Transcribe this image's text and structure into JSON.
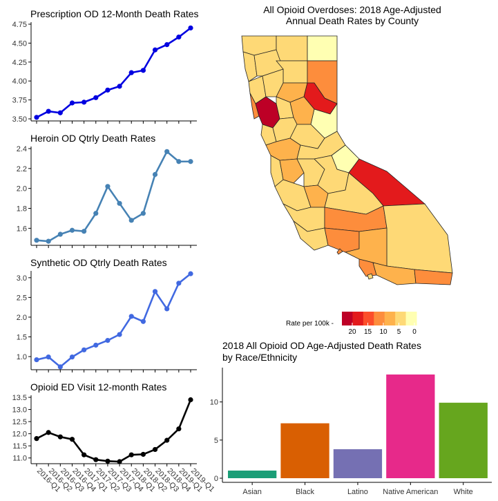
{
  "chart_data": [
    {
      "type": "line",
      "title": "Prescription OD 12-Month Death Rates",
      "x": [
        "2016-Q1",
        "2016-Q2",
        "2016-Q3",
        "2016-Q4",
        "2017-Q1",
        "2017-Q2",
        "2017-Q3",
        "2017-Q4",
        "2018-Q1",
        "2018-Q2",
        "2018-Q3",
        "2018-Q4",
        "2019-Q1",
        "2019-Q1"
      ],
      "values": [
        3.52,
        3.6,
        3.58,
        3.71,
        3.72,
        3.78,
        3.88,
        3.93,
        4.11,
        4.14,
        4.41,
        4.48,
        4.58,
        4.7
      ],
      "ylim": [
        3.5,
        4.75
      ],
      "yticks": [
        "3.50",
        "3.75",
        "4.00",
        "4.25",
        "4.50",
        "4.75"
      ],
      "color": "#0000e0"
    },
    {
      "type": "line",
      "title": "Heroin OD Qtrly Death Rates",
      "values": [
        1.48,
        1.47,
        1.54,
        1.58,
        1.57,
        1.75,
        2.02,
        1.85,
        1.68,
        1.75,
        2.14,
        2.37,
        2.27,
        2.27
      ],
      "ylim": [
        1.45,
        2.4
      ],
      "yticks": [
        "1.6",
        "1.8",
        "2.0",
        "2.2",
        "2.4"
      ],
      "color": "#4682b4"
    },
    {
      "type": "line",
      "title": "Synthetic OD Qtrly Death Rates",
      "values": [
        0.92,
        0.99,
        0.74,
        0.99,
        1.17,
        1.29,
        1.41,
        1.56,
        2.02,
        1.89,
        2.65,
        2.21,
        2.86,
        3.1
      ],
      "ylim": [
        0.72,
        3.12
      ],
      "yticks": [
        "1.0",
        "1.5",
        "2.0",
        "2.5",
        "3.0"
      ],
      "color": "#4169e1"
    },
    {
      "type": "line",
      "title": "Opioid ED Visit 12-month Rates",
      "values": [
        11.8,
        12.05,
        11.87,
        11.77,
        11.13,
        10.93,
        10.87,
        10.85,
        11.13,
        11.15,
        11.35,
        11.73,
        12.2,
        13.4
      ],
      "ylim": [
        10.85,
        13.5
      ],
      "yticks": [
        "11.0",
        "11.5",
        "12.0",
        "12.5",
        "13.0",
        "13.5"
      ],
      "xticks": [
        "2016-Q1",
        "2016-Q2",
        "2016-Q3",
        "2016-Q4",
        "2017-Q1",
        "2017-Q2",
        "2017-Q3",
        "2017-Q4",
        "2018-Q1",
        "2018-Q2",
        "2018-Q3",
        "2018-Q4",
        "2019-Q1",
        "2019-Q1"
      ],
      "color": "#000000"
    },
    {
      "type": "map",
      "title_line1": "All Opioid Overdoses: 2018 Age-Adjusted",
      "title_line2": "Annual Death Rates by County",
      "legend_title": "Rate per 100k -",
      "legend_ticks": [
        "20",
        "15",
        "10",
        "5",
        "0"
      ],
      "legend_colors": [
        "#bd0026",
        "#e31a1c",
        "#fc4e2a",
        "#fd8d3c",
        "#feb24c",
        "#fed976",
        "#ffffb2"
      ]
    },
    {
      "type": "bar",
      "title_line1": "2018 All Opioid OD Age-Adjusted Death Rates",
      "title_line2": "by Race/Ethnicity",
      "categories": [
        "Asian",
        "Black",
        "Latino",
        "Native American",
        "White"
      ],
      "values": [
        1.0,
        7.2,
        3.8,
        13.6,
        9.9
      ],
      "colors": [
        "#1b9e77",
        "#d95f02",
        "#7570b3",
        "#e7298a",
        "#66a61e"
      ],
      "ylim": [
        0,
        14.5
      ],
      "yticks": [
        "0",
        "5",
        "10"
      ]
    }
  ]
}
